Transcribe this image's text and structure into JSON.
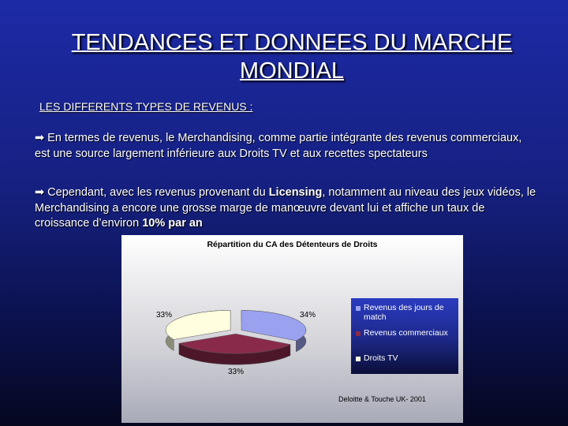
{
  "slide": {
    "title_line1": "TENDANCES ET DONNEES DU MARCHE",
    "title_line2": "MONDIAL",
    "subtitle": "LES DIFFERENTS TYPES DE REVENUS :",
    "bullet_arrow": "➡",
    "para1": "En termes de revenus, le Merchandising, comme partie intégrante des revenus commerciaux, est une source largement inférieure aux Droits TV et aux recettes spectateurs",
    "para2_a": "Cependant, avec les revenus provenant du ",
    "para2_b": "Licensing",
    "para2_c": ", notamment au niveau des jeux vidéos, le Merchandising a encore une grosse marge de manœuvre devant lui et affiche un taux de croissance d’environ ",
    "para2_d": "10% par an"
  },
  "chart_data": {
    "type": "pie",
    "title": "Répartition du CA des Détenteurs de Droits",
    "categories": [
      "Revenus des jours de match",
      "Revenus commerciaux",
      "Droits TV"
    ],
    "values": [
      34,
      33,
      33
    ],
    "labels": [
      "34%",
      "33%",
      "33%"
    ],
    "colors": [
      "#9aa2f0",
      "#8a2a4a",
      "#ffffe0"
    ],
    "legend": "right",
    "source": "Deloitte & Touche UK- 2001"
  }
}
